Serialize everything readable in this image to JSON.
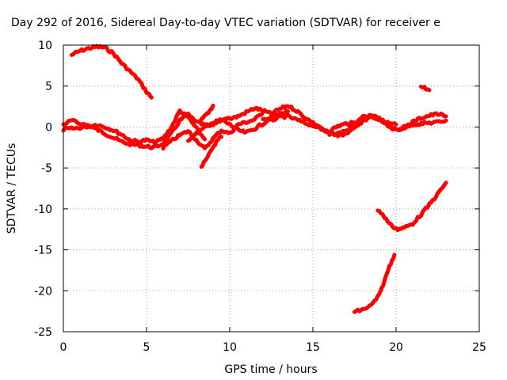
{
  "chart_data": {
    "type": "line",
    "title": "Day 292 of 2016, Sidereal Day-to-day VTEC variation (SDTVAR) for receiver e",
    "xlabel": "GPS time / hours",
    "ylabel": "SDTVAR / TECUs",
    "xlim": [
      0,
      25
    ],
    "ylim": [
      -25,
      10
    ],
    "xticks": [
      "0",
      "5",
      "10",
      "15",
      "20",
      "25"
    ],
    "yticks": [
      "10",
      "5",
      "0",
      "-5",
      "-10",
      "-15",
      "-20",
      "-25"
    ],
    "grid": true,
    "color": "#ff0000",
    "series": [
      {
        "x": [
          0.5,
          1.0,
          1.5,
          2.0,
          2.5,
          3.0,
          3.5,
          4.0,
          4.5,
          5.0,
          5.3
        ],
        "y": [
          8.8,
          9.3,
          9.6,
          9.8,
          9.7,
          9.0,
          7.8,
          6.8,
          5.8,
          4.3,
          3.6
        ]
      },
      {
        "x": [
          0.0,
          0.5,
          1.0,
          1.5,
          2.0,
          2.5,
          3.0,
          3.5,
          4.0,
          4.5,
          5.0,
          5.5,
          6.0,
          6.5,
          7.0,
          7.5,
          8.0,
          8.5,
          9.0,
          9.5,
          10.0
        ],
        "y": [
          0.3,
          0.8,
          0.4,
          0.2,
          -0.3,
          -0.8,
          -1.3,
          -1.8,
          -2.1,
          -2.2,
          -2.4,
          -2.5,
          -2.0,
          -0.8,
          0.8,
          1.5,
          0.6,
          0.2,
          0.3,
          0.9,
          1.0
        ]
      },
      {
        "x": [
          0.0,
          0.5,
          1.0,
          1.5,
          2.0,
          2.5,
          3.0,
          3.5,
          4.0,
          4.5,
          5.0,
          5.5,
          6.0,
          6.5,
          7.0,
          7.5,
          8.0,
          8.5
        ],
        "y": [
          -0.3,
          -0.2,
          -0.1,
          0.1,
          0.3,
          0.0,
          -0.4,
          -0.9,
          -1.6,
          -1.8,
          -1.6,
          -1.9,
          -1.4,
          0.0,
          2.0,
          1.2,
          -0.2,
          -1.5
        ]
      },
      {
        "x": [
          6.0,
          6.5,
          7.0,
          7.5,
          8.0,
          8.5,
          9.0,
          9.5,
          10.0,
          10.5,
          11.0,
          11.5,
          12.0
        ],
        "y": [
          -2.5,
          -1.7,
          -1.0,
          -0.5,
          -1.6,
          -2.7,
          -1.4,
          -0.4,
          -0.8,
          0.3,
          0.6,
          0.9,
          1.8
        ]
      },
      {
        "x": [
          7.5,
          8.0,
          8.5,
          9.0,
          9.5,
          10.0,
          10.5,
          11.0,
          11.5,
          12.0,
          12.5,
          13.0,
          13.5
        ],
        "y": [
          -1.6,
          -0.8,
          -0.1,
          0.5,
          0.9,
          0.3,
          -0.4,
          -0.7,
          -0.2,
          0.4,
          1.2,
          1.6,
          1.9
        ]
      },
      {
        "x": [
          8.3,
          8.6,
          8.9,
          9.2,
          9.5
        ],
        "y": [
          -4.8,
          -4.0,
          -2.8,
          -1.8,
          -1.2
        ]
      },
      {
        "x": [
          8.2,
          8.5,
          8.8,
          9.0
        ],
        "y": [
          0.6,
          1.3,
          2.0,
          2.6
        ]
      },
      {
        "x": [
          10.0,
          10.5,
          11.0,
          11.5,
          12.0,
          12.5,
          13.0,
          13.5,
          14.0,
          14.5,
          15.0,
          15.5,
          16.0,
          16.5,
          17.0
        ],
        "y": [
          1.0,
          1.3,
          1.8,
          2.3,
          2.0,
          1.6,
          2.2,
          2.6,
          2.0,
          1.2,
          0.5,
          -0.3,
          -0.9,
          -0.8,
          -0.4
        ]
      },
      {
        "x": [
          12.0,
          12.5,
          13.0,
          13.5,
          14.0,
          14.5,
          15.0,
          15.5,
          16.0,
          16.5,
          17.0,
          17.5,
          18.0,
          18.5,
          19.0,
          19.5,
          20.0
        ],
        "y": [
          1.0,
          0.8,
          1.2,
          1.3,
          0.9,
          0.5,
          0.2,
          -0.2,
          -0.5,
          0.1,
          0.4,
          0.5,
          0.9,
          1.3,
          0.9,
          0.5,
          0.3
        ]
      },
      {
        "x": [
          15.0,
          15.5,
          16.0,
          16.5,
          17.0,
          17.5,
          18.0,
          18.5,
          19.0,
          19.5,
          20.0,
          20.5,
          21.0,
          21.5,
          22.0,
          22.5,
          23.0
        ],
        "y": [
          0.4,
          -0.2,
          -0.9,
          -1.1,
          -0.6,
          0.4,
          1.2,
          1.4,
          1.0,
          0.2,
          -0.4,
          0.0,
          0.6,
          1.1,
          1.4,
          1.6,
          1.3
        ]
      },
      {
        "x": [
          16.5,
          17.0,
          17.5,
          18.0,
          18.5,
          19.0,
          19.5,
          20.0,
          20.5,
          21.0,
          21.5,
          22.0,
          22.5,
          23.0
        ],
        "y": [
          -1.1,
          -0.8,
          -0.2,
          0.6,
          1.5,
          1.0,
          0.3,
          -0.4,
          -0.1,
          0.3,
          0.4,
          0.5,
          0.6,
          0.8
        ]
      },
      {
        "x": [
          21.5,
          22.0
        ],
        "y": [
          5.0,
          4.5
        ]
      },
      {
        "x": [
          18.9,
          19.3,
          19.7,
          20.1,
          20.5,
          21.0,
          21.5,
          22.0,
          22.5,
          23.0
        ],
        "y": [
          -10.1,
          -11.0,
          -12.0,
          -12.5,
          -12.3,
          -11.8,
          -10.7,
          -9.5,
          -8.2,
          -6.8
        ]
      },
      {
        "x": [
          17.5,
          18.0,
          18.5,
          19.0,
          19.3,
          19.6,
          19.9
        ],
        "y": [
          -22.6,
          -22.3,
          -21.8,
          -20.5,
          -18.8,
          -17.0,
          -15.6
        ]
      }
    ]
  }
}
